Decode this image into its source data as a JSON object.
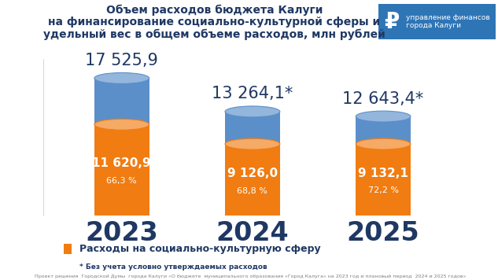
{
  "chart_data": {
    "type": "bar",
    "title": "Объем расходов бюджета Калуги\nна финансирование социально-культурной сферы и\nудельный вес в общем объеме расходов, млн рублей",
    "categories": [
      "2023",
      "2024",
      "2025"
    ],
    "series": [
      {
        "color": "#5b8fc9",
        "values": [
          17525.9,
          13264.1,
          12643.4
        ],
        "value_labels": [
          "17 525,9",
          "13 264,1*",
          "12 643,4*"
        ]
      },
      {
        "name": "Расходы на социально-культурную сферу",
        "color": "#f07c12",
        "values": [
          11620.9,
          9126.0,
          9132.1
        ],
        "value_labels": [
          "11 620,9",
          "9 126,0",
          "9 132,1"
        ],
        "shares": [
          66.3,
          68.8,
          72.2
        ],
        "share_labels": [
          "66,3 %",
          "68,8 %",
          "72,2 %"
        ]
      }
    ],
    "stacked": false,
    "data_labels": true,
    "tick_labels": "x",
    "legend": "lower left",
    "ylim": [
      0,
      20000
    ],
    "notes": [
      "* Без учета условно утверждаемых расходов",
      "Проект решения  Городской Думы  города Калуги «О бюджете  муниципального образования «Город Калуга» на 2023 год и плановый период  2024 и 2025 годов»"
    ],
    "logo": {
      "symbol": "₽",
      "text": "управление финансов\nгорода Калуги"
    }
  }
}
